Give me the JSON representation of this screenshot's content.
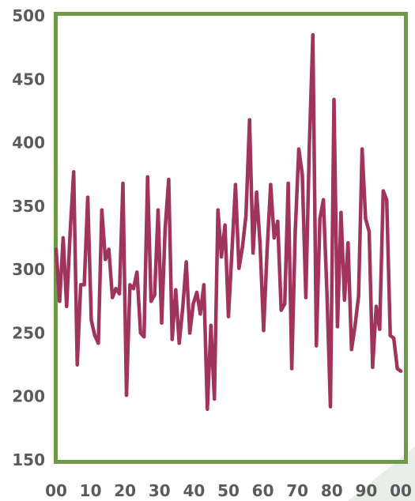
{
  "colors": {
    "frame": "#6e9a48",
    "line": "#a0345d",
    "tick_text": "#595c5c",
    "corner_shade": "#e9efe6"
  },
  "chart_data": {
    "type": "line",
    "title": "",
    "xlabel": "",
    "ylabel": "",
    "xlim": [
      0,
      100
    ],
    "ylim": [
      150,
      500
    ],
    "grid": false,
    "x_tick_labels": [
      "00",
      "10",
      "20",
      "30",
      "40",
      "50",
      "60",
      "70",
      "80",
      "90",
      "00"
    ],
    "y_tick_labels": [
      "150",
      "200",
      "250",
      "300",
      "350",
      "400",
      "450",
      "500"
    ],
    "series": [
      {
        "values": [
          316,
          275,
          325,
          271,
          330,
          377,
          225,
          288,
          288,
          357,
          260,
          248,
          242,
          347,
          308,
          316,
          278,
          285,
          281,
          368,
          201,
          288,
          285,
          298,
          250,
          247,
          373,
          275,
          280,
          347,
          258,
          332,
          371,
          245,
          284,
          242,
          270,
          306,
          250,
          273,
          282,
          265,
          288,
          190,
          256,
          198,
          347,
          310,
          335,
          263,
          314,
          367,
          301,
          318,
          343,
          418,
          313,
          361,
          320,
          252,
          315,
          367,
          325,
          338,
          268,
          273,
          368,
          222,
          330,
          395,
          375,
          278,
          397,
          485,
          240,
          340,
          355,
          282,
          192,
          434,
          255,
          345,
          276,
          321,
          237,
          256,
          279,
          395,
          340,
          330,
          223,
          271,
          253,
          362,
          355,
          248,
          246,
          222,
          220
        ]
      }
    ]
  }
}
